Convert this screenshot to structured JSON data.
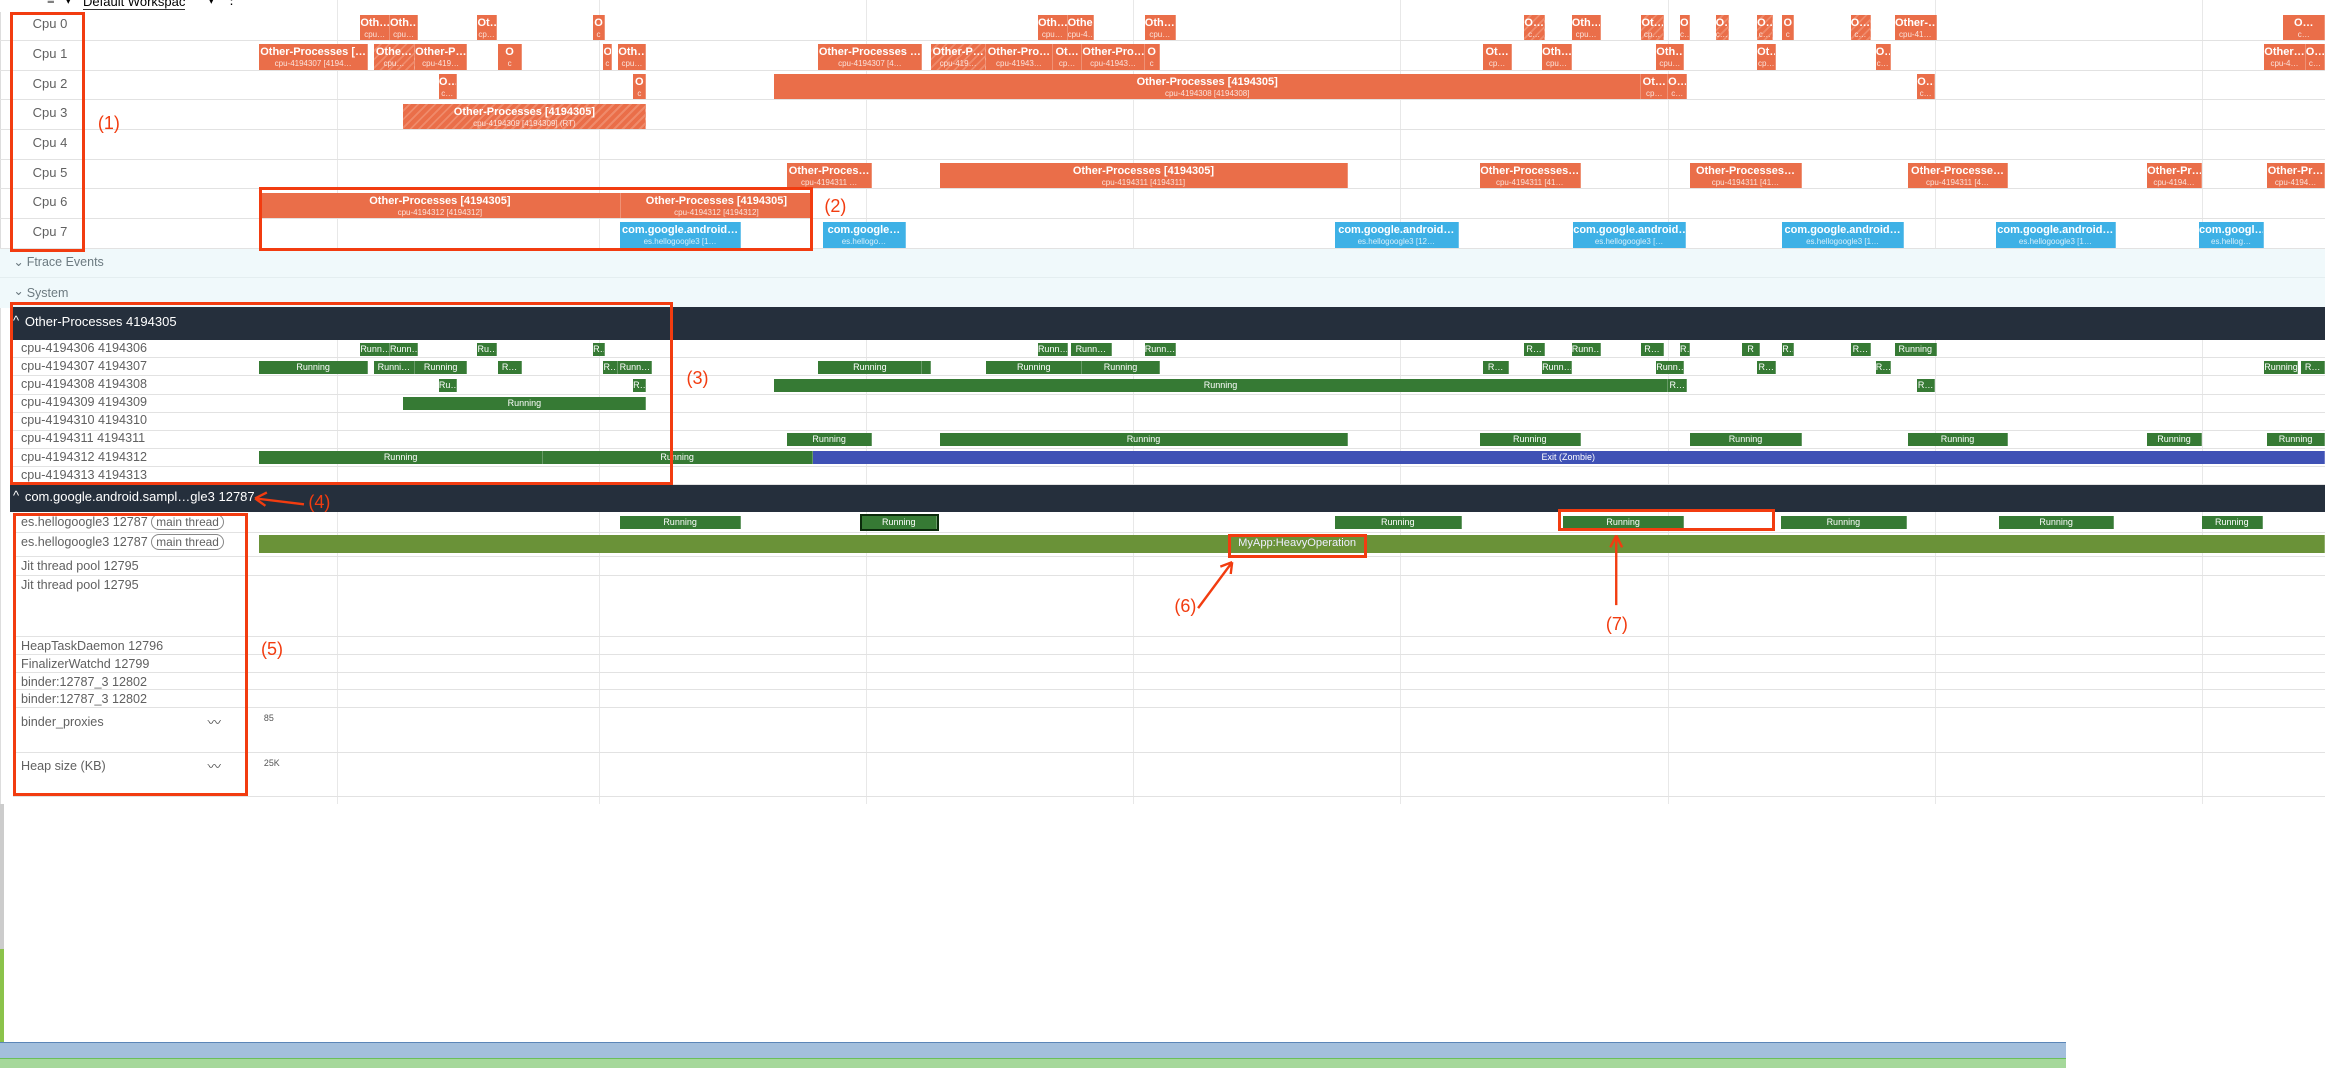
{
  "toolbar": {
    "workspace": "Default Workspac",
    "dropdown_icon": "caret-down-icon",
    "menu_icon": "more-vert-icon"
  },
  "cpus": [
    {
      "label": "Cpu 0",
      "slices": [
        {
          "t": "Oth…",
          "s": "cpu…"
        },
        {
          "t": "Oth…",
          "s": "cpu…"
        },
        {
          "t": "Ot…",
          "s": "cp…"
        },
        {
          "t": "O",
          "s": "c"
        },
        {
          "t": "Oth…",
          "s": "cpu…"
        },
        {
          "t": "Other…",
          "s": "cpu-4…"
        },
        {
          "t": "Oth…",
          "s": "cpu…"
        },
        {
          "t": "O…",
          "s": "c…"
        },
        {
          "t": "Oth…",
          "s": "cpu…"
        },
        {
          "t": "Ot…",
          "s": "cp…"
        },
        {
          "t": "O…",
          "s": "c…"
        },
        {
          "t": "O…",
          "s": "c…"
        },
        {
          "t": "O…",
          "s": "c…"
        },
        {
          "t": "O",
          "s": "c"
        },
        {
          "t": "O…",
          "s": "c…"
        },
        {
          "t": "Other-…",
          "s": "cpu-41…"
        },
        {
          "t": "O…",
          "s": "c…"
        }
      ]
    },
    {
      "label": "Cpu 1",
      "slices": [
        {
          "t": "Other-Processes […",
          "s": "cpu-4194307 [4194…"
        },
        {
          "t": "Othe…",
          "s": "cpu…"
        },
        {
          "t": "Other-P…",
          "s": "cpu-419…"
        },
        {
          "t": "O",
          "s": "c"
        },
        {
          "t": "O",
          "s": "c"
        },
        {
          "t": "Oth…",
          "s": "cpu…"
        },
        {
          "t": "Other-Processes …",
          "s": "cpu-4194307 [4…"
        },
        {
          "t": "Other-P…",
          "s": "cpu-419…"
        },
        {
          "t": "Other-Pro…",
          "s": "cpu-41943…"
        },
        {
          "t": "Ot…",
          "s": "cp…"
        },
        {
          "t": "Other-Pro…",
          "s": "cpu-41943…"
        },
        {
          "t": "O",
          "s": "c"
        },
        {
          "t": "Ot…",
          "s": "cp…"
        },
        {
          "t": "Oth…",
          "s": "cpu…"
        },
        {
          "t": "Oth…",
          "s": "cpu…"
        },
        {
          "t": "Ot…",
          "s": "cp…"
        },
        {
          "t": "O…",
          "s": "c…"
        },
        {
          "t": "Other…",
          "s": "cpu-4…"
        },
        {
          "t": "O…",
          "s": "c…"
        }
      ]
    },
    {
      "label": "Cpu 2",
      "slices": [
        {
          "t": "O…",
          "s": "c…"
        },
        {
          "t": "O",
          "s": "c"
        },
        {
          "t": "Other-Processes [4194305]",
          "s": "cpu-4194308 [4194308]"
        },
        {
          "t": "Ot…",
          "s": "cp…"
        },
        {
          "t": "O…",
          "s": "c…"
        },
        {
          "t": "O…",
          "s": "c…"
        }
      ]
    },
    {
      "label": "Cpu 3",
      "slices": [
        {
          "t": "Other-Processes [4194305]",
          "s": "cpu-4194309 [4194309] (RT)"
        }
      ]
    },
    {
      "label": "Cpu 4",
      "slices": []
    },
    {
      "label": "Cpu 5",
      "slices": [
        {
          "t": "Other-Proces…",
          "s": "cpu-4194311 …"
        },
        {
          "t": "Other-Processes [4194305]",
          "s": "cpu-4194311 [4194311]"
        },
        {
          "t": "Other-Processes…",
          "s": "cpu-4194311 [41…"
        },
        {
          "t": "Other-Processes…",
          "s": "cpu-4194311 [41…"
        },
        {
          "t": "Other-Processe…",
          "s": "cpu-4194311 [4…"
        },
        {
          "t": "Other-Pr…",
          "s": "cpu-4194…"
        },
        {
          "t": "Other-Pr…",
          "s": "cpu-4194…"
        }
      ]
    },
    {
      "label": "Cpu 6",
      "slices": [
        {
          "t": "Other-Processes [4194305]",
          "s": "cpu-4194312 [4194312]"
        },
        {
          "t": "Other-Processes [4194305]",
          "s": "cpu-4194312 [4194312]"
        }
      ]
    },
    {
      "label": "Cpu 7",
      "slices": [
        {
          "t": "com.google.android…",
          "s": "es.hellogoogle3 [1…"
        },
        {
          "t": "com.google…",
          "s": "es.hellogo…"
        },
        {
          "t": "com.google.android…",
          "s": "es.hellogoogle3 [12…"
        },
        {
          "t": "com.google.android…",
          "s": "es.hellogoogle3 […"
        },
        {
          "t": "com.google.android…",
          "s": "es.hellogoogle3 [1…"
        },
        {
          "t": "com.google.android…",
          "s": "es.hellogoogle3 [1…"
        },
        {
          "t": "com.googl…",
          "s": "es.hellog…"
        }
      ]
    }
  ],
  "sections": {
    "ftrace": "Ftrace Events",
    "system": "System",
    "expand_icon": "chevron-down-icon"
  },
  "other_processes": {
    "title": "Other-Processes 4194305",
    "collapse_icon": "chevron-up-icon",
    "threads": [
      {
        "label": "cpu-4194306 4194306",
        "slices": [
          "Runn…",
          "Runn…",
          "Ru…",
          "R…",
          "Runn…",
          "Runn…",
          "Runn…",
          "R…",
          "Runn…",
          "R…",
          "R…",
          "R",
          "R…",
          "R…",
          "Running"
        ]
      },
      {
        "label": "cpu-4194307 4194307",
        "slices": [
          "Running",
          "Runni…",
          "Running",
          "R…",
          "R…",
          "Runn…",
          "Running",
          "",
          "Running",
          "Running",
          "R…",
          "Runn…",
          "Runn…",
          "R…",
          "R…",
          "Running",
          "R…"
        ]
      },
      {
        "label": "cpu-4194308 4194308",
        "slices": [
          "Ru…",
          "R…",
          "Running",
          "R…",
          "R…"
        ]
      },
      {
        "label": "cpu-4194309 4194309",
        "slices": [
          "Running"
        ]
      },
      {
        "label": "cpu-4194310 4194310",
        "slices": []
      },
      {
        "label": "cpu-4194311 4194311",
        "slices": [
          "Running",
          "Running",
          "Running",
          "Running",
          "Running",
          "Running",
          "Running"
        ]
      },
      {
        "label": "cpu-4194312 4194312",
        "slices": [
          "Running",
          "Running",
          "Exit (Zombie)"
        ]
      },
      {
        "label": "cpu-4194313 4194313",
        "slices": []
      }
    ]
  },
  "app_process": {
    "title": "com.google.android.sampl…gle3 12787",
    "collapse_icon": "chevron-up-icon",
    "main_thread_state": {
      "label": "es.hellogoogle3 12787",
      "tag": "main thread",
      "slices": [
        "Running",
        "Running",
        "Running",
        "Running",
        "Running",
        "Running",
        "Running"
      ]
    },
    "main_thread_slices": {
      "label": "es.hellogoogle3 12787",
      "tag": "main thread",
      "slice": "MyApp:HeavyOperation"
    },
    "threads": [
      "Jit thread pool 12795",
      "Jit thread pool 12795",
      "HeapTaskDaemon 12796",
      "FinalizerWatchd 12799",
      "binder:12787_3 12802",
      "binder:12787_3 12802"
    ],
    "counters": [
      {
        "label": "binder_proxies",
        "value": "85",
        "icon": "chart-line-icon",
        "color": "#a3bfdc"
      },
      {
        "label": "Heap size (KB)",
        "value": "25K",
        "icon": "chart-line-icon",
        "color": "#a5d89a"
      }
    ]
  },
  "annotations": [
    "(1)",
    "(2)",
    "(3)",
    "(4)",
    "(5)",
    "(6)",
    "(7)"
  ],
  "colors": {
    "cpu_slice": "#ea6e49",
    "app_slice": "#3eb1e6",
    "running": "#367a34",
    "zombie": "#3f51b5",
    "slice_track": "#6a9238",
    "header": "#252f3c",
    "annotation": "#f23c10"
  }
}
